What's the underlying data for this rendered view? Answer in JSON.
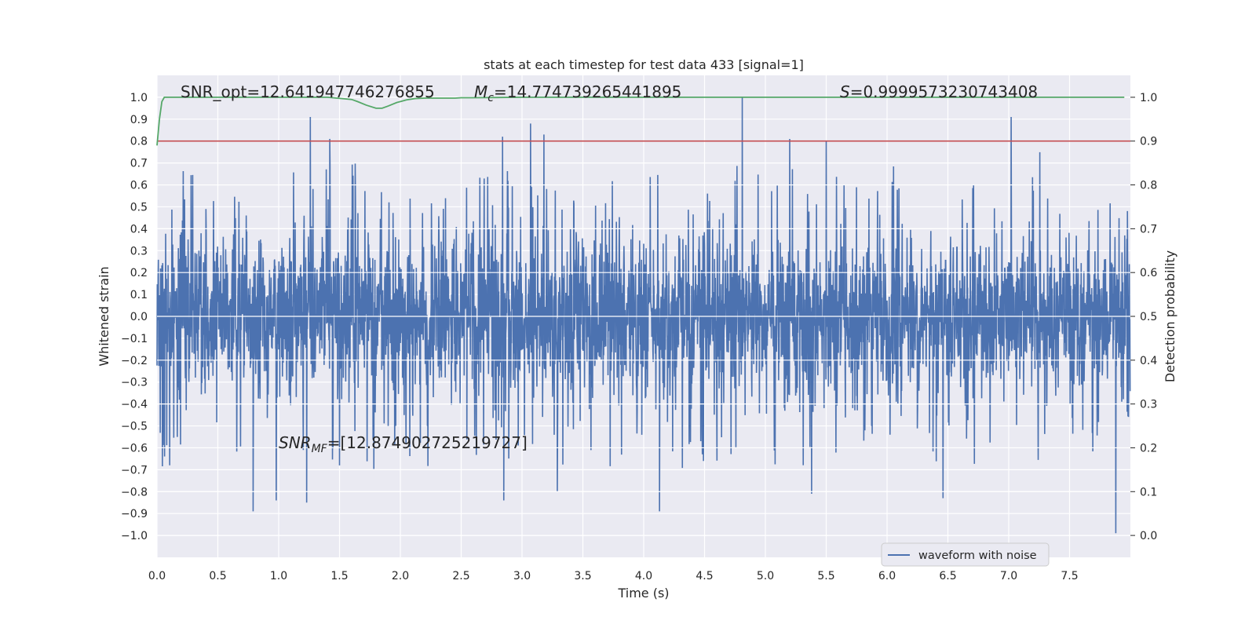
{
  "chart_data": {
    "type": "line",
    "title": "stats at each timestep for test data 433 [signal=1]",
    "xlabel": "Time (s)",
    "ylabel": "Whitened strain",
    "y2label": "Detection probability",
    "xlim": [
      0.0,
      8.0
    ],
    "ylim": [
      -1.1,
      1.1
    ],
    "y2lim": [
      -0.05,
      1.05
    ],
    "x_ticks": [
      0.0,
      0.5,
      1.0,
      1.5,
      2.0,
      2.5,
      3.0,
      3.5,
      4.0,
      4.5,
      5.0,
      5.5,
      6.0,
      6.5,
      7.0,
      7.5
    ],
    "x_tick_labels": [
      "0.0",
      "0.5",
      "1.0",
      "1.5",
      "2.0",
      "2.5",
      "3.0",
      "3.5",
      "4.0",
      "4.5",
      "5.0",
      "5.5",
      "6.0",
      "6.5",
      "7.0",
      "7.5"
    ],
    "y_ticks": [
      1.0,
      0.9,
      0.8,
      0.7,
      0.6,
      0.5,
      0.4,
      0.3,
      0.2,
      0.1,
      0.0,
      -0.1,
      -0.2,
      -0.3,
      -0.4,
      -0.5,
      -0.6,
      -0.7,
      -0.8,
      -0.9,
      -1.0
    ],
    "y_tick_labels": [
      "1.0",
      "0.9",
      "0.8",
      "0.7",
      "0.6",
      "0.5",
      "0.4",
      "0.3",
      "0.2",
      "0.1",
      "0.0",
      "−0.1",
      "−0.2",
      "−0.3",
      "−0.4",
      "−0.5",
      "−0.6",
      "−0.7",
      "−0.8",
      "−0.9",
      "−1.0"
    ],
    "y2_ticks": [
      1.0,
      0.9,
      0.8,
      0.7,
      0.6,
      0.5,
      0.4,
      0.3,
      0.2,
      0.1,
      0.0
    ],
    "y2_tick_labels": [
      "1.0",
      "0.9",
      "0.8",
      "0.7",
      "0.6",
      "0.5",
      "0.4",
      "0.3",
      "0.2",
      "0.1",
      "0.0"
    ],
    "series": [
      {
        "name": "waveform with noise",
        "axis": "left",
        "color": "#4c72b0",
        "kind": "noise",
        "duration_s": 8.0,
        "typical_range": [
          -0.42,
          0.42
        ],
        "peaks": [
          {
            "x": 1.26,
            "y": 0.91
          },
          {
            "x": 1.42,
            "y": 0.81
          },
          {
            "x": 1.23,
            "y": -0.85
          },
          {
            "x": 0.79,
            "y": -0.89
          },
          {
            "x": 0.98,
            "y": -0.84
          },
          {
            "x": 2.84,
            "y": 0.82
          },
          {
            "x": 3.07,
            "y": 0.88
          },
          {
            "x": 3.18,
            "y": 0.83
          },
          {
            "x": 2.85,
            "y": -0.84
          },
          {
            "x": 3.29,
            "y": -0.8
          },
          {
            "x": 4.13,
            "y": -0.89
          },
          {
            "x": 4.81,
            "y": 1.0
          },
          {
            "x": 5.2,
            "y": 0.81
          },
          {
            "x": 5.38,
            "y": -0.81
          },
          {
            "x": 5.5,
            "y": 0.8
          },
          {
            "x": 6.46,
            "y": -0.83
          },
          {
            "x": 7.02,
            "y": 0.91
          },
          {
            "x": 7.88,
            "y": 0.87
          },
          {
            "x": 7.88,
            "y": -0.99
          }
        ]
      },
      {
        "name": "detection probability",
        "axis": "right",
        "color": "#55a868",
        "x": [
          0.0,
          0.02,
          0.04,
          0.06,
          0.1,
          0.3,
          0.6,
          1.0,
          1.4,
          1.6,
          1.65,
          1.72,
          1.8,
          1.85,
          1.9,
          1.97,
          2.05,
          2.12,
          2.2,
          2.3,
          2.45,
          2.5,
          2.6,
          3.0,
          4.0,
          5.0,
          6.0,
          7.0,
          7.95
        ],
        "y": [
          0.89,
          0.95,
          0.99,
          1.0,
          1.0,
          1.0,
          1.0,
          1.0,
          1.0,
          0.995,
          0.99,
          0.982,
          0.975,
          0.975,
          0.98,
          0.988,
          0.994,
          0.997,
          0.998,
          0.998,
          0.998,
          0.999,
          0.999,
          1.0,
          1.0,
          1.0,
          1.0,
          1.0,
          1.0
        ]
      },
      {
        "name": "threshold",
        "axis": "right",
        "color": "#c44e52",
        "value": 0.9
      }
    ],
    "annotations": {
      "snr_opt": "SNR_opt=12.641947746276855",
      "mc_symbol": "M",
      "mc_sub": "c",
      "mc_value": "=14.774739265441895",
      "s_symbol": "S",
      "s_value": "=0.9999573230743408",
      "snr_mf_symbol": "SNR",
      "snr_mf_sub": "MF",
      "snr_mf_value": "=[12.874902725219727]"
    },
    "legend": {
      "location": "lower-right",
      "entries": [
        "waveform with noise"
      ]
    },
    "grid": true
  }
}
